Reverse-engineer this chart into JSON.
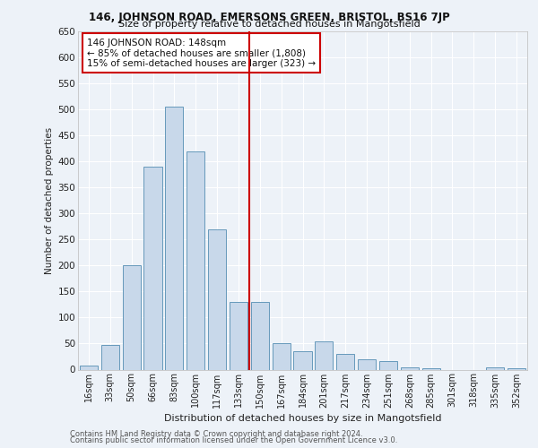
{
  "title1": "146, JOHNSON ROAD, EMERSONS GREEN, BRISTOL, BS16 7JP",
  "title2": "Size of property relative to detached houses in Mangotsfield",
  "xlabel": "Distribution of detached houses by size in Mangotsfield",
  "ylabel": "Number of detached properties",
  "footnote1": "Contains HM Land Registry data © Crown copyright and database right 2024.",
  "footnote2": "Contains public sector information licensed under the Open Government Licence v3.0.",
  "bar_labels": [
    "16sqm",
    "33sqm",
    "50sqm",
    "66sqm",
    "83sqm",
    "100sqm",
    "117sqm",
    "133sqm",
    "150sqm",
    "167sqm",
    "184sqm",
    "201sqm",
    "217sqm",
    "234sqm",
    "251sqm",
    "268sqm",
    "285sqm",
    "301sqm",
    "318sqm",
    "335sqm",
    "352sqm"
  ],
  "bar_values": [
    8,
    48,
    200,
    390,
    505,
    420,
    270,
    130,
    130,
    50,
    35,
    55,
    30,
    20,
    17,
    5,
    3,
    0,
    0,
    5,
    3
  ],
  "bar_color": "#c8d8ea",
  "bar_edge_color": "#6699bb",
  "property_label": "146 JOHNSON ROAD: 148sqm",
  "annotation_line1": "← 85% of detached houses are smaller (1,808)",
  "annotation_line2": "15% of semi-detached houses are larger (323) →",
  "vline_color": "#cc0000",
  "annotation_box_color": "#ffffff",
  "annotation_box_edge_color": "#cc0000",
  "ylim": [
    0,
    650
  ],
  "yticks": [
    0,
    50,
    100,
    150,
    200,
    250,
    300,
    350,
    400,
    450,
    500,
    550,
    600,
    650
  ],
  "bg_color": "#edf2f8",
  "plot_bg_color": "#edf2f8",
  "grid_color": "#ffffff"
}
